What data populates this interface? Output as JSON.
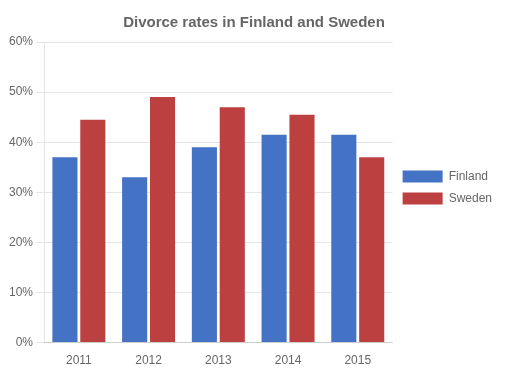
{
  "chart_data": {
    "type": "bar",
    "title": "Divorce rates in Finland and Sweden",
    "categories": [
      "2011",
      "2012",
      "2013",
      "2014",
      "2015"
    ],
    "series": [
      {
        "name": "Finland",
        "color": "#4472C4",
        "values": [
          0.37,
          0.33,
          0.39,
          0.415,
          0.415
        ]
      },
      {
        "name": "Sweden",
        "color": "#BC4040",
        "values": [
          0.445,
          0.49,
          0.47,
          0.455,
          0.37
        ]
      }
    ],
    "ylim": [
      0,
      0.6
    ],
    "yticks": [
      {
        "value": 0.0,
        "label": "0%"
      },
      {
        "value": 0.1,
        "label": "10%"
      },
      {
        "value": 0.2,
        "label": "20%"
      },
      {
        "value": 0.3,
        "label": "30%"
      },
      {
        "value": 0.4,
        "label": "40%"
      },
      {
        "value": 0.5,
        "label": "50%"
      },
      {
        "value": 0.6,
        "label": "60%"
      }
    ],
    "grid": true,
    "legend": "right"
  }
}
